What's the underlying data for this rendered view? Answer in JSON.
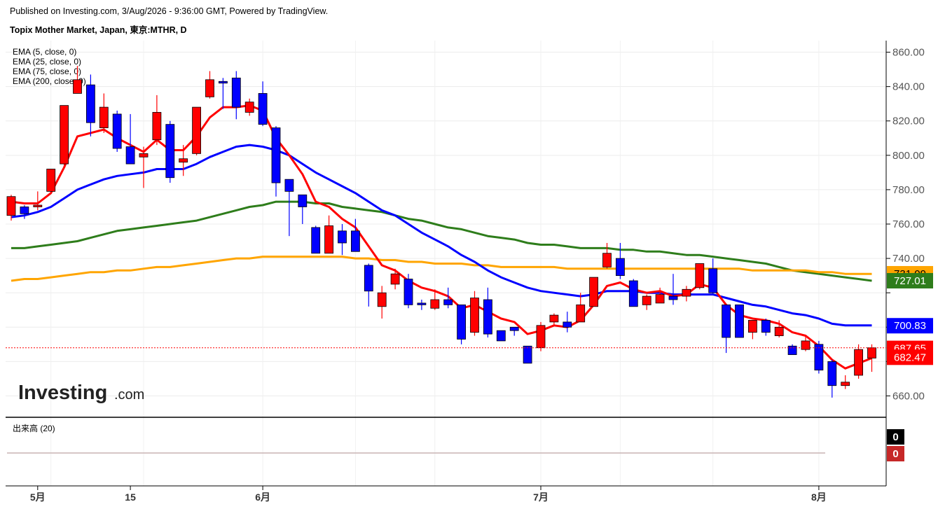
{
  "header": {
    "published": "Published on Investing.com, 3/Aug/2026 - 9:36:00 GMT, Powered by TradingView.",
    "symbol": "Topix Mother Market, Japan, 東京:MTHR, D"
  },
  "indicators": [
    "EMA (5, close, 0)",
    "EMA (25, close, 0)",
    "EMA (75, close, 0)",
    "EMA (200, close, 0)"
  ],
  "volume_label": "出来高 (20)",
  "watermark": {
    "brand": "Investing",
    "suffix": ".com"
  },
  "colors": {
    "up": "#ff0000",
    "down": "#0000ff",
    "ema5": "#ff0000",
    "ema25": "#0000ff",
    "ema75": "#ffa500",
    "ema200": "#2e7d1b"
  },
  "chart_data": {
    "type": "candlestick",
    "y_axis": {
      "min": 650,
      "max": 870,
      "ticks": [
        660,
        680,
        700,
        720,
        740,
        760,
        780,
        800,
        820,
        840,
        860
      ],
      "tick_labels": [
        "660.00",
        "",
        "",
        "",
        "740.00",
        "760.00",
        "780.00",
        "800.00",
        "820.00",
        "840.00",
        "860.00"
      ]
    },
    "x_labels": [
      {
        "index": 2,
        "label": "5月"
      },
      {
        "index": 9,
        "label": "15"
      },
      {
        "index": 19,
        "label": "6月"
      },
      {
        "index": 40,
        "label": "7月"
      },
      {
        "index": 61,
        "label": "8月"
      }
    ],
    "candles": [
      {
        "o": 765,
        "h": 777,
        "l": 762,
        "c": 776
      },
      {
        "o": 770,
        "h": 771,
        "l": 763,
        "c": 766
      },
      {
        "o": 770,
        "h": 779,
        "l": 768,
        "c": 771
      },
      {
        "o": 779,
        "h": 792,
        "l": 778,
        "c": 792
      },
      {
        "o": 795,
        "h": 829,
        "l": 794,
        "c": 829
      },
      {
        "o": 836,
        "h": 852,
        "l": 836,
        "c": 844
      },
      {
        "o": 841,
        "h": 847,
        "l": 811,
        "c": 819
      },
      {
        "o": 816,
        "h": 836,
        "l": 813,
        "c": 828
      },
      {
        "o": 824,
        "h": 826,
        "l": 802,
        "c": 804
      },
      {
        "o": 805,
        "h": 824,
        "l": 795,
        "c": 795
      },
      {
        "o": 799,
        "h": 805,
        "l": 781,
        "c": 801
      },
      {
        "o": 809,
        "h": 835,
        "l": 806,
        "c": 825
      },
      {
        "o": 818,
        "h": 820,
        "l": 784,
        "c": 787
      },
      {
        "o": 796,
        "h": 806,
        "l": 788,
        "c": 798
      },
      {
        "o": 801,
        "h": 828,
        "l": 800,
        "c": 828
      },
      {
        "o": 834,
        "h": 849,
        "l": 833,
        "c": 844
      },
      {
        "o": 843,
        "h": 845,
        "l": 827,
        "c": 842
      },
      {
        "o": 845,
        "h": 849,
        "l": 821,
        "c": 828
      },
      {
        "o": 825,
        "h": 833,
        "l": 823,
        "c": 831
      },
      {
        "o": 836,
        "h": 843,
        "l": 817,
        "c": 818
      },
      {
        "o": 816,
        "h": 817,
        "l": 776,
        "c": 784
      },
      {
        "o": 786,
        "h": 786,
        "l": 753,
        "c": 779
      },
      {
        "o": 777,
        "h": 777,
        "l": 760,
        "c": 770
      },
      {
        "o": 758,
        "h": 759,
        "l": 743,
        "c": 743
      },
      {
        "o": 743,
        "h": 765,
        "l": 743,
        "c": 759
      },
      {
        "o": 756,
        "h": 760,
        "l": 742,
        "c": 749
      },
      {
        "o": 756,
        "h": 763,
        "l": 745,
        "c": 744
      },
      {
        "o": 736,
        "h": 737,
        "l": 712,
        "c": 721
      },
      {
        "o": 712,
        "h": 724,
        "l": 705,
        "c": 720
      },
      {
        "o": 725,
        "h": 734,
        "l": 722,
        "c": 731
      },
      {
        "o": 728,
        "h": 731,
        "l": 711,
        "c": 713
      },
      {
        "o": 714,
        "h": 716,
        "l": 710,
        "c": 713
      },
      {
        "o": 711,
        "h": 722,
        "l": 710,
        "c": 716
      },
      {
        "o": 716,
        "h": 723,
        "l": 711,
        "c": 713
      },
      {
        "o": 713,
        "h": 713,
        "l": 690,
        "c": 693
      },
      {
        "o": 697,
        "h": 721,
        "l": 695,
        "c": 717
      },
      {
        "o": 716,
        "h": 723,
        "l": 694,
        "c": 696
      },
      {
        "o": 698,
        "h": 698,
        "l": 692,
        "c": 692
      },
      {
        "o": 700,
        "h": 700,
        "l": 695,
        "c": 698
      },
      {
        "o": 689,
        "h": 689,
        "l": 680,
        "c": 679
      },
      {
        "o": 688,
        "h": 703,
        "l": 686,
        "c": 701
      },
      {
        "o": 703,
        "h": 708,
        "l": 701,
        "c": 707
      },
      {
        "o": 703,
        "h": 709,
        "l": 697,
        "c": 700
      },
      {
        "o": 703,
        "h": 720,
        "l": 703,
        "c": 713
      },
      {
        "o": 712,
        "h": 729,
        "l": 712,
        "c": 729
      },
      {
        "o": 735,
        "h": 749,
        "l": 734,
        "c": 743
      },
      {
        "o": 740,
        "h": 749,
        "l": 728,
        "c": 730
      },
      {
        "o": 727,
        "h": 728,
        "l": 712,
        "c": 712
      },
      {
        "o": 713,
        "h": 719,
        "l": 710,
        "c": 718
      },
      {
        "o": 714,
        "h": 723,
        "l": 714,
        "c": 719
      },
      {
        "o": 718,
        "h": 731,
        "l": 713,
        "c": 716
      },
      {
        "o": 718,
        "h": 724,
        "l": 715,
        "c": 722
      },
      {
        "o": 723,
        "h": 737,
        "l": 722,
        "c": 737
      },
      {
        "o": 734,
        "h": 740,
        "l": 719,
        "c": 720
      },
      {
        "o": 713,
        "h": 713,
        "l": 685,
        "c": 694
      },
      {
        "o": 713,
        "h": 713,
        "l": 694,
        "c": 694
      },
      {
        "o": 697,
        "h": 704,
        "l": 693,
        "c": 704
      },
      {
        "o": 704,
        "h": 705,
        "l": 695,
        "c": 697
      },
      {
        "o": 695,
        "h": 704,
        "l": 694,
        "c": 700
      },
      {
        "o": 689,
        "h": 690,
        "l": 684,
        "c": 684
      },
      {
        "o": 687,
        "h": 695,
        "l": 686,
        "c": 692
      },
      {
        "o": 690,
        "h": 692,
        "l": 673,
        "c": 675
      },
      {
        "o": 680,
        "h": 681,
        "l": 659,
        "c": 666
      },
      {
        "o": 666,
        "h": 672,
        "l": 664,
        "c": 668
      },
      {
        "o": 672,
        "h": 690,
        "l": 670,
        "c": 687
      },
      {
        "o": 682,
        "h": 690,
        "l": 674,
        "c": 688
      }
    ],
    "ema5": [
      773,
      772,
      772,
      778,
      793,
      811,
      813,
      815,
      810,
      806,
      802,
      809,
      803,
      803,
      811,
      822,
      828,
      828,
      829,
      826,
      810,
      800,
      789,
      773,
      770,
      763,
      758,
      747,
      736,
      733,
      727,
      723,
      721,
      718,
      711,
      713,
      709,
      705,
      703,
      696,
      698,
      701,
      700,
      704,
      713,
      724,
      726,
      722,
      720,
      721,
      718,
      719,
      725,
      723,
      713,
      707,
      705,
      704,
      702,
      697,
      695,
      689,
      681,
      676,
      679,
      682
    ],
    "ema25": [
      764,
      765,
      767,
      770,
      775,
      780,
      783,
      786,
      788,
      789,
      790,
      792,
      792,
      792,
      795,
      799,
      802,
      805,
      806,
      805,
      803,
      800,
      795,
      790,
      786,
      782,
      778,
      773,
      768,
      765,
      760,
      755,
      751,
      747,
      742,
      738,
      733,
      729,
      726,
      723,
      721,
      720,
      719,
      718,
      719,
      721,
      721,
      721,
      720,
      720,
      719,
      719,
      719,
      719,
      717,
      715,
      713,
      712,
      710,
      708,
      707,
      705,
      702,
      701,
      701,
      701
    ],
    "ema75": [
      727,
      728,
      728,
      729,
      730,
      731,
      732,
      732,
      733,
      733,
      734,
      735,
      735,
      736,
      737,
      738,
      739,
      740,
      740,
      741,
      741,
      741,
      741,
      741,
      741,
      741,
      740,
      740,
      739,
      739,
      738,
      738,
      737,
      737,
      737,
      736,
      736,
      735,
      735,
      735,
      735,
      735,
      734,
      734,
      734,
      734,
      734,
      734,
      734,
      734,
      734,
      734,
      734,
      734,
      734,
      734,
      733,
      733,
      733,
      733,
      733,
      732,
      732,
      731,
      731,
      731
    ],
    "ema200": [
      746,
      746,
      747,
      748,
      749,
      750,
      752,
      754,
      756,
      757,
      758,
      759,
      760,
      761,
      762,
      764,
      766,
      768,
      770,
      771,
      773,
      773,
      773,
      772,
      772,
      770,
      769,
      768,
      767,
      765,
      763,
      762,
      760,
      758,
      757,
      755,
      753,
      752,
      751,
      749,
      748,
      748,
      747,
      746,
      746,
      746,
      745,
      745,
      744,
      744,
      743,
      742,
      742,
      741,
      740,
      739,
      738,
      737,
      735,
      733,
      732,
      731,
      730,
      729,
      728,
      727
    ]
  },
  "price_tags": [
    {
      "value": "731.09",
      "bg": "#ffa500",
      "dark": true
    },
    {
      "value": "727.01",
      "bg": "#2e7d1b",
      "dark": false
    },
    {
      "value": "700.83",
      "bg": "#0000ff",
      "dark": false
    },
    {
      "value": "687.65",
      "bg": "#ff0000",
      "dark": false
    },
    {
      "value": "682.47",
      "bg": "#ff0000",
      "dark": false
    }
  ],
  "volume_tags": [
    {
      "value": "0",
      "bg": "#000000"
    },
    {
      "value": "0",
      "bg": "#c62828"
    }
  ]
}
